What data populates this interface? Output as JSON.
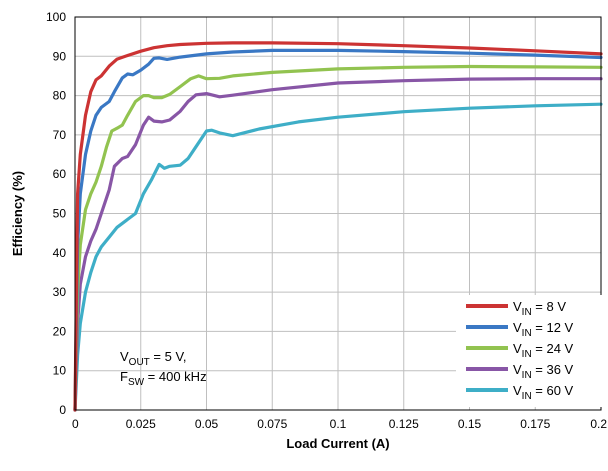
{
  "chart_data": {
    "type": "line",
    "xlabel": "Load Current (A)",
    "ylabel": "Efficiency (%)",
    "xlim": [
      0,
      0.2
    ],
    "ylim": [
      0,
      100
    ],
    "x_ticks": [
      "0",
      "0.025",
      "0.05",
      "0.075",
      "0.1",
      "0.125",
      "0.15",
      "0.175",
      "0.2"
    ],
    "y_ticks": [
      "0",
      "10",
      "20",
      "30",
      "40",
      "50",
      "60",
      "70",
      "80",
      "90",
      "100"
    ],
    "grid": true,
    "legend_position": "bottom-right",
    "annotation": {
      "line1_main": "V",
      "line1_sub": "OUT",
      "line1_rest": " = 5 V,",
      "line2_main": "F",
      "line2_sub": "SW",
      "line2_rest": " = 400 kHz"
    },
    "series": [
      {
        "label_main": "V",
        "label_sub": "IN",
        "label_rest": " = 8 V",
        "color": "#cc3333",
        "x": [
          0,
          0.001,
          0.002,
          0.004,
          0.006,
          0.008,
          0.01,
          0.013,
          0.016,
          0.02,
          0.025,
          0.03,
          0.035,
          0.04,
          0.05,
          0.06,
          0.075,
          0.1,
          0.125,
          0.15,
          0.175,
          0.2
        ],
        "y": [
          0,
          55,
          65,
          75,
          81,
          84,
          85,
          87.5,
          89.3,
          90.2,
          91.3,
          92.2,
          92.7,
          93.0,
          93.3,
          93.4,
          93.4,
          93.2,
          92.7,
          92.1,
          91.4,
          90.6
        ]
      },
      {
        "label_main": "V",
        "label_sub": "IN",
        "label_rest": " = 12 V",
        "color": "#3a78c4",
        "x": [
          0,
          0.001,
          0.002,
          0.004,
          0.006,
          0.008,
          0.01,
          0.013,
          0.015,
          0.018,
          0.02,
          0.022,
          0.025,
          0.028,
          0.03,
          0.032,
          0.035,
          0.04,
          0.05,
          0.06,
          0.075,
          0.1,
          0.125,
          0.15,
          0.175,
          0.2
        ],
        "y": [
          0,
          42,
          55,
          65,
          71,
          75,
          77,
          78.5,
          81,
          84.5,
          85.5,
          85.3,
          86.5,
          88,
          89.5,
          89.6,
          89.2,
          89.8,
          90.6,
          91.1,
          91.5,
          91.5,
          91.2,
          90.8,
          90.3,
          89.7
        ]
      },
      {
        "label_main": "V",
        "label_sub": "IN",
        "label_rest": " = 24 V",
        "color": "#92c350",
        "x": [
          0,
          0.001,
          0.002,
          0.004,
          0.006,
          0.008,
          0.01,
          0.012,
          0.014,
          0.016,
          0.018,
          0.02,
          0.023,
          0.026,
          0.028,
          0.03,
          0.033,
          0.036,
          0.04,
          0.044,
          0.047,
          0.05,
          0.055,
          0.06,
          0.075,
          0.1,
          0.125,
          0.15,
          0.175,
          0.2
        ],
        "y": [
          0,
          30,
          42,
          51,
          55,
          58,
          62,
          67,
          71,
          71.7,
          72.5,
          75,
          78.5,
          80,
          80,
          79.5,
          79.5,
          80.3,
          82.3,
          84.3,
          85,
          84.3,
          84.4,
          85,
          85.9,
          86.8,
          87.2,
          87.4,
          87.3,
          87.2
        ]
      },
      {
        "label_main": "V",
        "label_sub": "IN",
        "label_rest": " = 36 V",
        "color": "#8856a6",
        "x": [
          0,
          0.001,
          0.002,
          0.004,
          0.006,
          0.008,
          0.01,
          0.013,
          0.015,
          0.018,
          0.02,
          0.023,
          0.026,
          0.028,
          0.03,
          0.033,
          0.036,
          0.04,
          0.043,
          0.046,
          0.05,
          0.055,
          0.06,
          0.075,
          0.1,
          0.125,
          0.15,
          0.175,
          0.2
        ],
        "y": [
          0,
          22,
          32,
          39,
          43,
          46,
          50,
          56,
          62,
          64,
          64.5,
          67.5,
          72.5,
          74.5,
          73.5,
          73.3,
          73.8,
          76,
          78.5,
          80.2,
          80.5,
          79.7,
          80.1,
          81.5,
          83.2,
          83.8,
          84.2,
          84.3,
          84.3
        ]
      },
      {
        "label_main": "V",
        "label_sub": "IN",
        "label_rest": " = 60 V",
        "color": "#3eaec7",
        "x": [
          0,
          0.001,
          0.002,
          0.004,
          0.006,
          0.008,
          0.01,
          0.013,
          0.016,
          0.02,
          0.023,
          0.026,
          0.029,
          0.032,
          0.034,
          0.036,
          0.04,
          0.043,
          0.046,
          0.05,
          0.052,
          0.055,
          0.06,
          0.07,
          0.085,
          0.1,
          0.125,
          0.15,
          0.175,
          0.2
        ],
        "y": [
          0,
          14,
          22,
          30,
          35,
          39,
          41.5,
          44,
          46.5,
          48.5,
          50,
          55,
          58.5,
          62.5,
          61.5,
          62,
          62.3,
          64,
          67,
          71,
          71.2,
          70.5,
          69.8,
          71.5,
          73.3,
          74.5,
          75.9,
          76.8,
          77.4,
          77.8
        ]
      }
    ]
  }
}
